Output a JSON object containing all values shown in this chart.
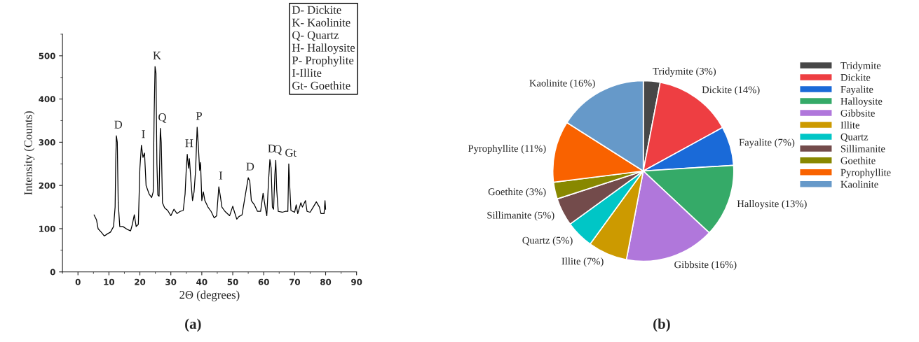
{
  "chart_data": [
    {
      "type": "line",
      "xlabel": "2Θ (degrees)",
      "ylabel": "Intensity (Counts)",
      "xlim": [
        -5,
        90
      ],
      "ylim": [
        0,
        550
      ],
      "xticks": [
        0,
        10,
        20,
        30,
        40,
        50,
        60,
        70,
        80,
        90
      ],
      "yticks": [
        0,
        100,
        200,
        300,
        400,
        500
      ],
      "grid": false,
      "legend": false,
      "marker": "none",
      "line_style": "solid",
      "series": [
        {
          "color": "#000000",
          "x": [
            5.2,
            6,
            6.5,
            7.5,
            8.5,
            9.5,
            10.5,
            11.5,
            12,
            12.2,
            12.4,
            12.7,
            13,
            13.5,
            14.5,
            16,
            17,
            17.5,
            18.2,
            18.8,
            19.5,
            20,
            20.5,
            21,
            21.5,
            22,
            23,
            23.8,
            24.3,
            24.6,
            24.9,
            25.2,
            25.5,
            25.8,
            26.2,
            26.6,
            26.9,
            27.3,
            28,
            29,
            30,
            31,
            32,
            33,
            34,
            34.6,
            35,
            35.3,
            35.7,
            36,
            36.5,
            37,
            37.5,
            38,
            38.5,
            38.9,
            39.3,
            39.6,
            40,
            40.5,
            41,
            42,
            43,
            44,
            44.8,
            45.5,
            46,
            46.5,
            47.5,
            49,
            50,
            50.5,
            51.3,
            52,
            53,
            54,
            55,
            55.5,
            56,
            57,
            58,
            59,
            59.8,
            60.5,
            61,
            61.6,
            62,
            62.4,
            62.8,
            63.2,
            63.6,
            63.9,
            64.2,
            64.7,
            66,
            67,
            67.8,
            68.1,
            68.4,
            68.8,
            70,
            70.5,
            71,
            72,
            72.5,
            73.5,
            74,
            75,
            76,
            77,
            78,
            78.5,
            79.5,
            79.8,
            80
          ],
          "values": [
            132,
            120,
            100,
            92,
            83,
            88,
            92,
            105,
            150,
            255,
            315,
            300,
            160,
            105,
            105,
            98,
            95,
            108,
            132,
            105,
            110,
            240,
            293,
            265,
            275,
            200,
            180,
            172,
            185,
            360,
            475,
            460,
            250,
            178,
            175,
            332,
            300,
            160,
            148,
            142,
            130,
            145,
            135,
            140,
            142,
            180,
            240,
            272,
            240,
            262,
            210,
            165,
            185,
            235,
            335,
            290,
            235,
            253,
            165,
            185,
            165,
            150,
            140,
            125,
            130,
            197,
            175,
            150,
            140,
            130,
            152,
            140,
            122,
            128,
            132,
            175,
            218,
            210,
            165,
            155,
            140,
            140,
            182,
            150,
            130,
            215,
            260,
            240,
            150,
            145,
            225,
            258,
            190,
            140,
            138,
            140,
            140,
            250,
            200,
            142,
            138,
            155,
            135,
            160,
            150,
            165,
            140,
            138,
            150,
            162,
            150,
            135,
            135,
            165,
            145
          ]
        }
      ],
      "annotations": [
        {
          "text": "D",
          "x": 12.4,
          "y": 315
        },
        {
          "text": "I",
          "x": 20.5,
          "y": 293
        },
        {
          "text": "K",
          "x": 24.9,
          "y": 475
        },
        {
          "text": "Q",
          "x": 26.6,
          "y": 332
        },
        {
          "text": "H",
          "x": 35.3,
          "y": 272
        },
        {
          "text": "P",
          "x": 38.5,
          "y": 335
        },
        {
          "text": "I",
          "x": 45.5,
          "y": 197
        },
        {
          "text": "D",
          "x": 55,
          "y": 218
        },
        {
          "text": "D",
          "x": 62,
          "y": 260
        },
        {
          "text": "Q",
          "x": 63.9,
          "y": 258
        },
        {
          "text": "Gt",
          "x": 68.1,
          "y": 250
        },
        "D- Dickite",
        "K- Kaolinite",
        "Q- Quartz",
        "H- Halloysite",
        "P- Prophylite",
        "I-Illite",
        "Gt- Goethite",
        "(a)"
      ]
    },
    {
      "type": "pie",
      "categories": [
        "Tridymite",
        "Dickite",
        "Fayalite",
        "Halloysite",
        "Gibbsite",
        "Illite",
        "Quartz",
        "Sillimanite",
        "Goethite",
        "Pyrophyllite",
        "Kaolinite"
      ],
      "values": [
        3,
        14,
        7,
        13,
        16,
        7,
        5,
        5,
        3,
        11,
        16
      ],
      "colors": [
        "#474747",
        "#ee3e42",
        "#1a6ad8",
        "#35aa68",
        "#b077db",
        "#cc9a00",
        "#00c6c6",
        "#734b4b",
        "#888800",
        "#f96200",
        "#6699c9"
      ],
      "value_labels": [
        "Tridymite (3%)",
        "Dickite (14%)",
        "Fayalite (7%)",
        "Halloysite (13%)",
        "Gibbsite (16%)",
        "Illite (7%)",
        "Quartz (5%)",
        "Sillimanite (5%)",
        "Goethite (3%)",
        "Pyrophyllite (11%)",
        "Kaolinite (16%)"
      ],
      "legend": "right",
      "annotations": [
        "(b)"
      ]
    }
  ]
}
